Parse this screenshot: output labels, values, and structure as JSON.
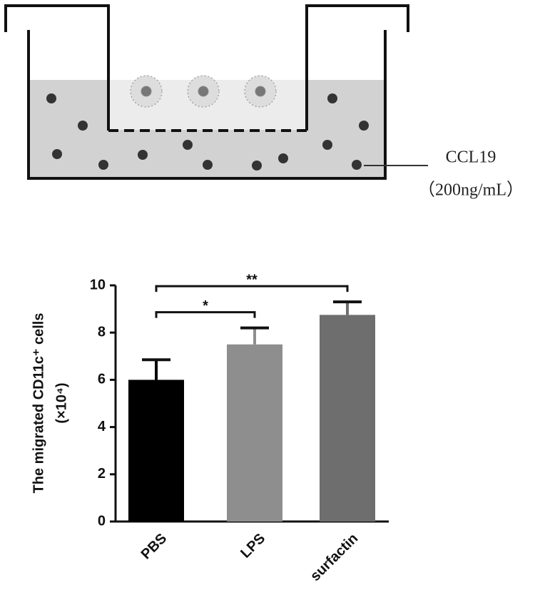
{
  "diagram": {
    "label": "CCL19",
    "concentration": "（200ng/mL）"
  },
  "chart_data": {
    "type": "bar",
    "y_label": [
      "The migrated CD11c⁺ cells",
      "(×10⁴)"
    ],
    "categories": [
      "PBS",
      "LPS",
      "surfactin"
    ],
    "series": [
      {
        "values": [
          6.0,
          7.5,
          8.75
        ],
        "errors": [
          0.85,
          0.7,
          0.55
        ],
        "colors": [
          "#000000",
          "#8e8e8e",
          "#6e6e6e"
        ]
      }
    ],
    "ylim": [
      0,
      10
    ],
    "yticks": [
      0,
      2,
      4,
      6,
      8,
      10
    ],
    "annotations": [
      {
        "text": "*",
        "between": [
          "PBS",
          "LPS"
        ]
      },
      {
        "text": "**",
        "between": [
          "PBS",
          "surfactin"
        ]
      }
    ]
  }
}
